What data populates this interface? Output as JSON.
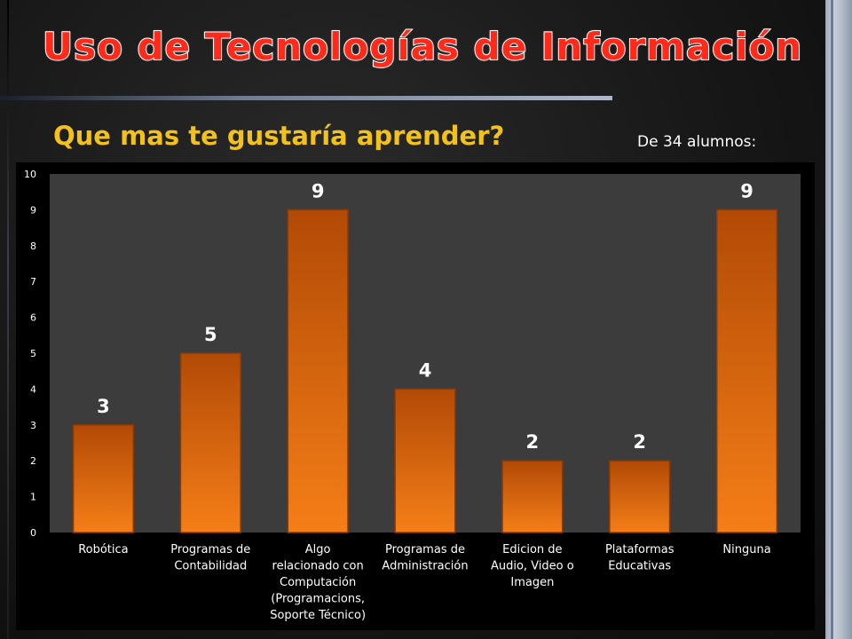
{
  "slide": {
    "title": "Uso de Tecnologías de Información",
    "subtitle": "Que mas te gustaría aprender?",
    "note": "De 34 alumnos:"
  },
  "colors": {
    "title": "#ff2a1a",
    "subtitle": "#f2c21a",
    "bar_top": "#b24a06",
    "bar_bottom": "#f57e17",
    "plot_background": "#3c3c3c"
  },
  "chart_data": {
    "type": "bar",
    "categories": [
      "Robótica",
      "Programas de Contabilidad",
      "Algo relacionado con Computación (Programacions, Soporte Técnico)",
      "Programas de Administración",
      "Edicion de Audio, Video o Imagen",
      "Plataformas Educativas",
      "Ninguna"
    ],
    "category_lines": [
      [
        "Robótica"
      ],
      [
        "Programas de",
        "Contabilidad"
      ],
      [
        "Algo",
        "relacionado con",
        "Computación",
        "(Programacions,",
        "Soporte Técnico)"
      ],
      [
        "Programas de",
        "Administración"
      ],
      [
        "Edicion de",
        "Audio, Video o",
        "Imagen"
      ],
      [
        "Plataformas",
        "Educativas"
      ],
      [
        "Ninguna"
      ]
    ],
    "values": [
      3,
      5,
      9,
      4,
      2,
      2,
      9
    ],
    "data_labels": [
      "3",
      "5",
      "9",
      "4",
      "2",
      "2",
      "9"
    ],
    "y_ticks": [
      "0",
      "1",
      "2",
      "3",
      "4",
      "5",
      "6",
      "7",
      "8",
      "9",
      "10"
    ],
    "ylim": [
      0,
      10
    ],
    "grid": false,
    "legend": "none"
  }
}
